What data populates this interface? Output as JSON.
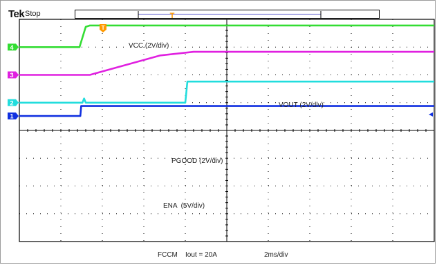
{
  "header": {
    "brand": "Tek",
    "acq_state": "Stop"
  },
  "trigger": {
    "marker": "T",
    "color": "#ff9900"
  },
  "grid": {
    "divisions_x": 10,
    "divisions_y": 8,
    "color": "#000000"
  },
  "channels": [
    {
      "id": "4",
      "label": "VCC (2V/div)",
      "color": "#33dd33"
    },
    {
      "id": "3",
      "label": "VOUT (2V/div)",
      "color": "#e020e0"
    },
    {
      "id": "2",
      "label": "PGOOD (2V/div)",
      "color": "#22dddd"
    },
    {
      "id": "1",
      "label": "ENA  (5V/div)",
      "color": "#1030e0"
    }
  ],
  "waveforms": {
    "unit_x": "div from left edge",
    "unit_y": "div from top edge",
    "ch4": [
      [
        0,
        1.0
      ],
      [
        1.45,
        1.0
      ],
      [
        1.6,
        0.27
      ],
      [
        1.7,
        0.22
      ],
      [
        10,
        0.22
      ]
    ],
    "ch3": [
      [
        0,
        2.0
      ],
      [
        1.7,
        2.0
      ],
      [
        3.4,
        1.3
      ],
      [
        4.2,
        1.17
      ],
      [
        10,
        1.17
      ]
    ],
    "ch2": [
      [
        0,
        3.0
      ],
      [
        1.52,
        3.0
      ],
      [
        1.56,
        2.85
      ],
      [
        1.6,
        3.0
      ],
      [
        4.0,
        3.0
      ],
      [
        4.05,
        2.24
      ],
      [
        10,
        2.24
      ]
    ],
    "ch1": [
      [
        0,
        3.48
      ],
      [
        1.47,
        3.48
      ],
      [
        1.49,
        3.12
      ],
      [
        10,
        3.12
      ]
    ]
  },
  "footer": {
    "mode": "FCCM",
    "load": "Iout = 20A",
    "timebase": "2ms/div"
  }
}
